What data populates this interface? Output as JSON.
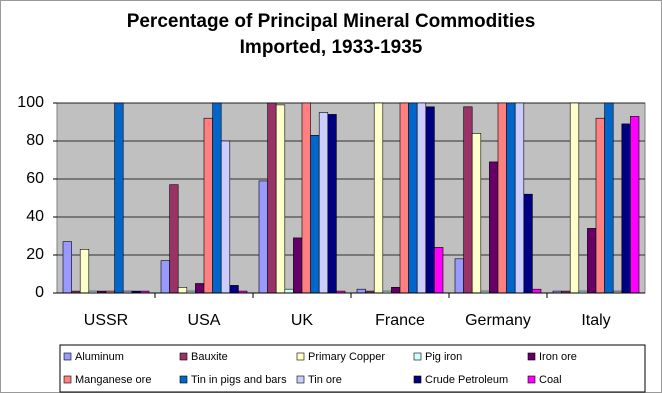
{
  "chart_data": {
    "type": "bar",
    "title": [
      "Percentage of Principal Mineral Commodities",
      "Imported, 1933-1935"
    ],
    "categories": [
      "USSR",
      "USA",
      "UK",
      "France",
      "Germany",
      "Italy"
    ],
    "series": [
      {
        "name": "Aluminum",
        "color": "#9999FF",
        "values": [
          27,
          17,
          59,
          2,
          18,
          1
        ]
      },
      {
        "name": "Bauxite",
        "color": "#993366",
        "values": [
          1,
          57,
          100,
          1,
          98,
          1
        ]
      },
      {
        "name": "Primary Copper",
        "color": "#FFFFCC",
        "values": [
          23,
          3,
          99,
          100,
          84,
          100
        ]
      },
      {
        "name": "Pig iron",
        "color": "#CCFFFF",
        "values": [
          1,
          1,
          2,
          1,
          1,
          1
        ]
      },
      {
        "name": "Iron ore",
        "color": "#660066",
        "values": [
          1,
          5,
          29,
          3,
          69,
          34
        ]
      },
      {
        "name": "Manganese ore",
        "color": "#FF8080",
        "values": [
          1,
          92,
          100,
          100,
          100,
          92
        ]
      },
      {
        "name": "Tin in pigs and bars",
        "color": "#0066CC",
        "values": [
          100,
          100,
          83,
          100,
          100,
          100
        ]
      },
      {
        "name": "Tin ore",
        "color": "#CCCCFF",
        "values": [
          1,
          80,
          95,
          100,
          100,
          1
        ]
      },
      {
        "name": "Crude Petroleum",
        "color": "#000080",
        "values": [
          1,
          4,
          94,
          98,
          52,
          89
        ]
      },
      {
        "name": "Coal",
        "color": "#FF00FF",
        "values": [
          1,
          1,
          1,
          24,
          2,
          93
        ]
      }
    ],
    "ylim": [
      0,
      100
    ],
    "yticks": [
      0,
      20,
      40,
      60,
      80,
      100
    ],
    "grid": true,
    "plot_background": "#C0C0C0",
    "legend": "bottom"
  }
}
